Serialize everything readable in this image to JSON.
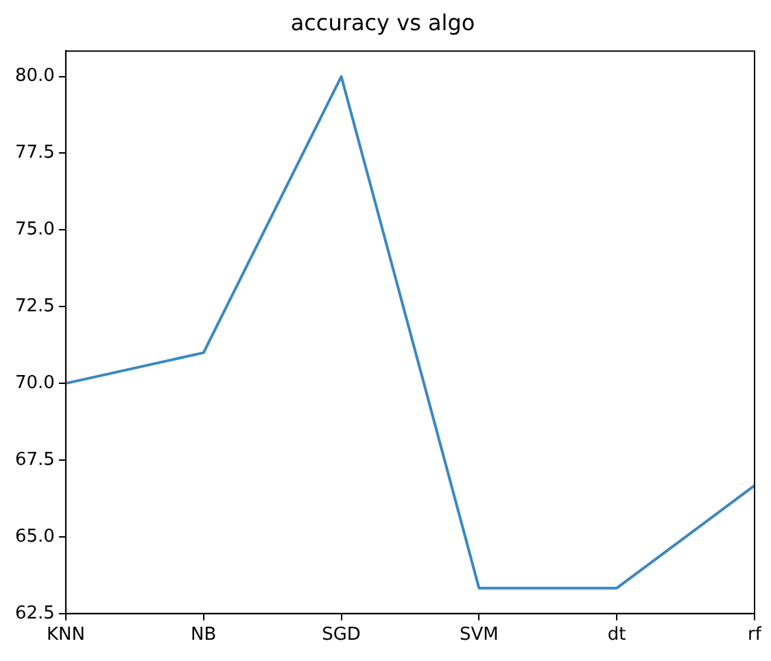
{
  "chart_data": {
    "type": "line",
    "title": "accuracy vs algo",
    "categories": [
      "KNN",
      "NB",
      "SGD",
      "SVM",
      "dt",
      "rf"
    ],
    "series": [
      {
        "color": "#3b88c3",
        "values": [
          70.0,
          71.0,
          80.0,
          63.33,
          63.33,
          66.67
        ]
      }
    ],
    "ylim": [
      62.5,
      80.83
    ],
    "yticks": [
      62.5,
      {
        "value": 65,
        "label": "65.0"
      },
      67.5,
      {
        "value": 70,
        "label": "70.0"
      },
      72.5,
      {
        "value": 75,
        "label": "75.0"
      },
      77.5,
      {
        "value": 80,
        "label": "80.0"
      }
    ],
    "grid": false,
    "legend": false,
    "marker": "none",
    "line_style": "solid"
  }
}
